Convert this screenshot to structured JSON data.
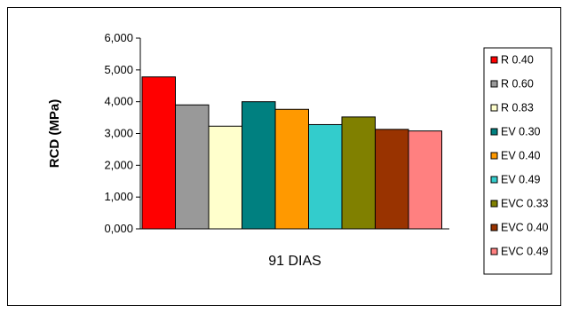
{
  "chart_data": {
    "type": "bar",
    "title": "",
    "xlabel": "",
    "ylabel": "RCD (MPa)",
    "categories": [
      "91 DIAS"
    ],
    "ylim": [
      0,
      6
    ],
    "yticks": [
      "0,000",
      "1,000",
      "2,000",
      "3,000",
      "4,000",
      "5,000",
      "6,000"
    ],
    "grid": false,
    "legend_position": "right",
    "series": [
      {
        "name": "R 0.40",
        "values": [
          4.78
        ],
        "color": "#FF0000"
      },
      {
        "name": "R 0.60",
        "values": [
          3.9
        ],
        "color": "#999999"
      },
      {
        "name": "R 0.83",
        "values": [
          3.23
        ],
        "color": "#FFFFCC"
      },
      {
        "name": "EV 0.30",
        "values": [
          4.0
        ],
        "color": "#008080"
      },
      {
        "name": "EV 0.40",
        "values": [
          3.76
        ],
        "color": "#FF9900"
      },
      {
        "name": "EV 0.49",
        "values": [
          3.28
        ],
        "color": "#33CCCC"
      },
      {
        "name": "EVC 0.33",
        "values": [
          3.52
        ],
        "color": "#808000"
      },
      {
        "name": "EVC 0.40",
        "values": [
          3.13
        ],
        "color": "#993300"
      },
      {
        "name": "EVC 0.49",
        "values": [
          3.08
        ],
        "color": "#FF8080"
      }
    ]
  }
}
